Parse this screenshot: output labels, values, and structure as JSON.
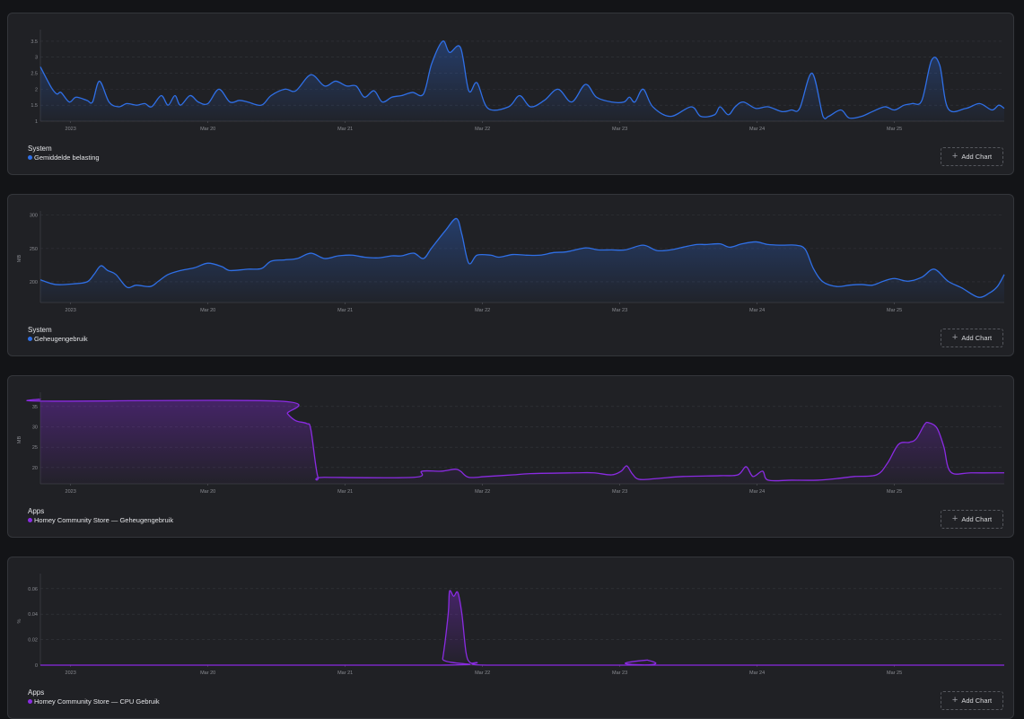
{
  "add_chart_label": "Add Chart",
  "x_ticks": {
    "days": [
      0,
      1,
      2,
      3,
      4,
      5,
      6
    ],
    "labels": [
      "2023",
      "Mar 20",
      "Mar 21",
      "Mar 22",
      "Mar 23",
      "Mar 24",
      "Mar 25"
    ]
  },
  "chart_data": [
    {
      "type": "area",
      "group": "System",
      "series_name": "Gemiddelde belasting",
      "color": "#2f6fe6",
      "ylabel": "",
      "xlim": [
        -0.22,
        6.8
      ],
      "ylim": [
        1,
        3.75
      ],
      "yticks": [
        1,
        1.5,
        2,
        2.5,
        3,
        3.5
      ],
      "points": [
        [
          -0.22,
          2.7
        ],
        [
          -0.14,
          2.05
        ],
        [
          -0.1,
          1.85
        ],
        [
          -0.07,
          1.9
        ],
        [
          -0.01,
          1.6
        ],
        [
          0.04,
          1.75
        ],
        [
          0.12,
          1.65
        ],
        [
          0.16,
          1.6
        ],
        [
          0.21,
          2.25
        ],
        [
          0.28,
          1.6
        ],
        [
          0.35,
          1.45
        ],
        [
          0.41,
          1.55
        ],
        [
          0.48,
          1.5
        ],
        [
          0.54,
          1.55
        ],
        [
          0.59,
          1.45
        ],
        [
          0.66,
          1.8
        ],
        [
          0.71,
          1.5
        ],
        [
          0.76,
          1.8
        ],
        [
          0.8,
          1.5
        ],
        [
          0.87,
          1.8
        ],
        [
          0.93,
          1.6
        ],
        [
          1.0,
          1.55
        ],
        [
          1.08,
          2.0
        ],
        [
          1.16,
          1.6
        ],
        [
          1.23,
          1.65
        ],
        [
          1.29,
          1.6
        ],
        [
          1.39,
          1.5
        ],
        [
          1.46,
          1.8
        ],
        [
          1.56,
          2.0
        ],
        [
          1.64,
          1.95
        ],
        [
          1.75,
          2.45
        ],
        [
          1.85,
          2.1
        ],
        [
          1.93,
          2.25
        ],
        [
          2.01,
          2.1
        ],
        [
          2.08,
          2.1
        ],
        [
          2.14,
          1.75
        ],
        [
          2.21,
          1.95
        ],
        [
          2.27,
          1.6
        ],
        [
          2.34,
          1.75
        ],
        [
          2.41,
          1.8
        ],
        [
          2.49,
          1.9
        ],
        [
          2.57,
          1.85
        ],
        [
          2.63,
          2.8
        ],
        [
          2.71,
          3.5
        ],
        [
          2.76,
          3.15
        ],
        [
          2.84,
          3.3
        ],
        [
          2.9,
          1.95
        ],
        [
          2.96,
          2.2
        ],
        [
          3.04,
          1.4
        ],
        [
          3.19,
          1.45
        ],
        [
          3.27,
          1.8
        ],
        [
          3.35,
          1.45
        ],
        [
          3.45,
          1.65
        ],
        [
          3.55,
          2.0
        ],
        [
          3.65,
          1.6
        ],
        [
          3.75,
          2.15
        ],
        [
          3.83,
          1.75
        ],
        [
          3.94,
          1.6
        ],
        [
          4.03,
          1.6
        ],
        [
          4.07,
          1.75
        ],
        [
          4.11,
          1.6
        ],
        [
          4.17,
          2.0
        ],
        [
          4.24,
          1.45
        ],
        [
          4.37,
          1.15
        ],
        [
          4.52,
          1.45
        ],
        [
          4.59,
          1.15
        ],
        [
          4.69,
          1.2
        ],
        [
          4.73,
          1.45
        ],
        [
          4.79,
          1.2
        ],
        [
          4.84,
          1.45
        ],
        [
          4.9,
          1.6
        ],
        [
          4.99,
          1.4
        ],
        [
          5.08,
          1.45
        ],
        [
          5.18,
          1.3
        ],
        [
          5.25,
          1.35
        ],
        [
          5.31,
          1.4
        ],
        [
          5.4,
          2.5
        ],
        [
          5.48,
          1.15
        ],
        [
          5.52,
          1.15
        ],
        [
          5.61,
          1.35
        ],
        [
          5.67,
          1.1
        ],
        [
          5.76,
          1.15
        ],
        [
          5.84,
          1.3
        ],
        [
          5.93,
          1.45
        ],
        [
          6.0,
          1.35
        ],
        [
          6.07,
          1.5
        ],
        [
          6.13,
          1.55
        ],
        [
          6.2,
          1.65
        ],
        [
          6.27,
          2.9
        ],
        [
          6.33,
          2.75
        ],
        [
          6.39,
          1.4
        ],
        [
          6.52,
          1.4
        ],
        [
          6.62,
          1.55
        ],
        [
          6.71,
          1.35
        ],
        [
          6.76,
          1.5
        ],
        [
          6.8,
          1.4
        ]
      ]
    },
    {
      "type": "area",
      "group": "System",
      "series_name": "Geheugengebruik",
      "color": "#2f6fe6",
      "ylabel": "MB",
      "xlim": [
        -0.22,
        6.8
      ],
      "ylim": [
        169,
        301
      ],
      "yticks": [
        200,
        250,
        300
      ],
      "points": [
        [
          -0.22,
          203
        ],
        [
          -0.11,
          196
        ],
        [
          0.02,
          197
        ],
        [
          0.12,
          200
        ],
        [
          0.17,
          211
        ],
        [
          0.22,
          224
        ],
        [
          0.27,
          217
        ],
        [
          0.33,
          211
        ],
        [
          0.41,
          192
        ],
        [
          0.48,
          195
        ],
        [
          0.58,
          193
        ],
        [
          0.64,
          201
        ],
        [
          0.71,
          211
        ],
        [
          0.8,
          217
        ],
        [
          0.9,
          221
        ],
        [
          1.0,
          228
        ],
        [
          1.1,
          223
        ],
        [
          1.16,
          217
        ],
        [
          1.29,
          219
        ],
        [
          1.39,
          220
        ],
        [
          1.46,
          231
        ],
        [
          1.56,
          233
        ],
        [
          1.65,
          235
        ],
        [
          1.75,
          243
        ],
        [
          1.85,
          235
        ],
        [
          1.95,
          239
        ],
        [
          2.05,
          240
        ],
        [
          2.14,
          237
        ],
        [
          2.24,
          236
        ],
        [
          2.34,
          239
        ],
        [
          2.41,
          239
        ],
        [
          2.5,
          243
        ],
        [
          2.57,
          235
        ],
        [
          2.63,
          251
        ],
        [
          2.73,
          277
        ],
        [
          2.81,
          295
        ],
        [
          2.85,
          271
        ],
        [
          2.9,
          228
        ],
        [
          2.96,
          240
        ],
        [
          3.06,
          240
        ],
        [
          3.12,
          237
        ],
        [
          3.22,
          241
        ],
        [
          3.32,
          240
        ],
        [
          3.42,
          240
        ],
        [
          3.52,
          244
        ],
        [
          3.61,
          245
        ],
        [
          3.75,
          251
        ],
        [
          3.84,
          248
        ],
        [
          3.94,
          248
        ],
        [
          4.04,
          248
        ],
        [
          4.17,
          255
        ],
        [
          4.27,
          247
        ],
        [
          4.37,
          248
        ],
        [
          4.46,
          252
        ],
        [
          4.56,
          256
        ],
        [
          4.63,
          256
        ],
        [
          4.73,
          257
        ],
        [
          4.8,
          252
        ],
        [
          4.89,
          257
        ],
        [
          4.99,
          260
        ],
        [
          5.08,
          256
        ],
        [
          5.18,
          255
        ],
        [
          5.28,
          255
        ],
        [
          5.35,
          249
        ],
        [
          5.41,
          220
        ],
        [
          5.48,
          200
        ],
        [
          5.58,
          193
        ],
        [
          5.67,
          195
        ],
        [
          5.76,
          196
        ],
        [
          5.84,
          195
        ],
        [
          5.92,
          201
        ],
        [
          6.0,
          205
        ],
        [
          6.1,
          201
        ],
        [
          6.2,
          207
        ],
        [
          6.29,
          219
        ],
        [
          6.39,
          201
        ],
        [
          6.49,
          191
        ],
        [
          6.61,
          177
        ],
        [
          6.69,
          183
        ],
        [
          6.75,
          193
        ],
        [
          6.8,
          211
        ]
      ]
    },
    {
      "type": "area",
      "group": "Apps",
      "series_name": "Homey Community Store — Geheugengebruik",
      "color": "#8a2be2",
      "ylabel": "MB",
      "xlim": [
        -0.22,
        6.8
      ],
      "ylim": [
        16,
        37.6
      ],
      "yticks": [
        20,
        25,
        30,
        35
      ],
      "points": [
        [
          -0.22,
          36.8
        ],
        [
          -0.18,
          36.3
        ],
        [
          1.52,
          36.3
        ],
        [
          1.58,
          33.2
        ],
        [
          1.64,
          31.5
        ],
        [
          1.72,
          30.8
        ],
        [
          1.75,
          29.3
        ],
        [
          1.8,
          17.8
        ],
        [
          1.85,
          17.6
        ],
        [
          2.5,
          17.6
        ],
        [
          2.56,
          19.1
        ],
        [
          2.7,
          19.1
        ],
        [
          2.8,
          19.6
        ],
        [
          2.84,
          19.1
        ],
        [
          2.9,
          17.6
        ],
        [
          3.03,
          17.8
        ],
        [
          3.22,
          18.2
        ],
        [
          3.35,
          18.5
        ],
        [
          3.68,
          18.7
        ],
        [
          3.81,
          18.7
        ],
        [
          3.94,
          18.2
        ],
        [
          4.01,
          19.1
        ],
        [
          4.05,
          20.4
        ],
        [
          4.09,
          18.5
        ],
        [
          4.14,
          17.1
        ],
        [
          4.27,
          17.3
        ],
        [
          4.46,
          17.8
        ],
        [
          4.73,
          18.0
        ],
        [
          4.86,
          18.2
        ],
        [
          4.92,
          20.2
        ],
        [
          4.97,
          17.8
        ],
        [
          5.04,
          19.1
        ],
        [
          5.08,
          16.9
        ],
        [
          5.25,
          16.9
        ],
        [
          5.44,
          16.9
        ],
        [
          5.58,
          17.3
        ],
        [
          5.71,
          17.8
        ],
        [
          5.87,
          18.2
        ],
        [
          5.95,
          21.1
        ],
        [
          6.03,
          25.7
        ],
        [
          6.11,
          26.2
        ],
        [
          6.16,
          27.1
        ],
        [
          6.22,
          30.6
        ],
        [
          6.25,
          31.0
        ],
        [
          6.31,
          29.7
        ],
        [
          6.36,
          25.1
        ],
        [
          6.41,
          18.9
        ],
        [
          6.56,
          18.7
        ],
        [
          6.8,
          18.7
        ]
      ]
    },
    {
      "type": "area",
      "group": "Apps",
      "series_name": "Homey Community Store — CPU Gebruik",
      "color": "#8a2be2",
      "ylabel": "%",
      "xlim": [
        -0.22,
        6.8
      ],
      "ylim": [
        0,
        0.069
      ],
      "yticks": [
        0,
        0.02,
        0.04,
        0.06
      ],
      "points": [
        [
          -0.22,
          0
        ],
        [
          2.69,
          0
        ],
        [
          2.71,
          0.005
        ],
        [
          2.75,
          0.04
        ],
        [
          2.76,
          0.058
        ],
        [
          2.79,
          0.054
        ],
        [
          2.82,
          0.057
        ],
        [
          2.85,
          0.04
        ],
        [
          2.88,
          0.01
        ],
        [
          2.91,
          0.002
        ],
        [
          2.96,
          0.002
        ],
        [
          3.03,
          0
        ],
        [
          4.17,
          0
        ],
        [
          4.2,
          0.004
        ],
        [
          4.24,
          0
        ],
        [
          6.8,
          0
        ]
      ]
    }
  ]
}
